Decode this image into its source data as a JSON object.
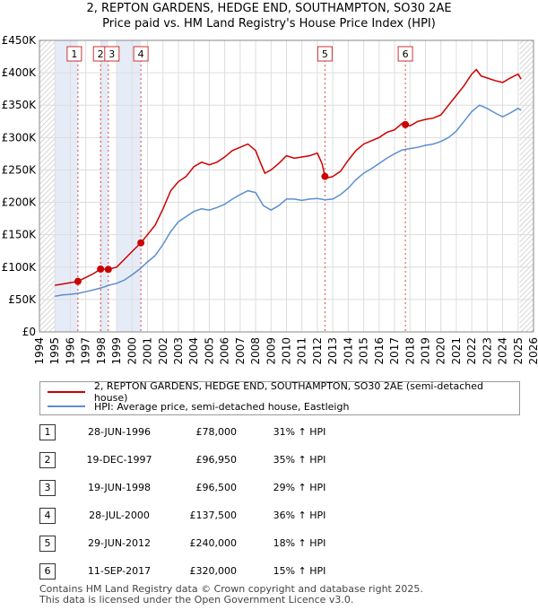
{
  "title_line1": "2, REPTON GARDENS, HEDGE END, SOUTHAMPTON, SO30 2AE",
  "title_line2": "Price paid vs. HM Land Registry's House Price Index (HPI)",
  "chart_data": {
    "type": "line",
    "ylim": [
      0,
      450000
    ],
    "xlim": [
      1994,
      2026
    ],
    "y_ticks": [
      {
        "value": 0,
        "label": "£0"
      },
      {
        "value": 50000,
        "label": "£50K"
      },
      {
        "value": 100000,
        "label": "£100K"
      },
      {
        "value": 150000,
        "label": "£150K"
      },
      {
        "value": 200000,
        "label": "£200K"
      },
      {
        "value": 250000,
        "label": "£250K"
      },
      {
        "value": 300000,
        "label": "£300K"
      },
      {
        "value": 350000,
        "label": "£350K"
      },
      {
        "value": 400000,
        "label": "£400K"
      },
      {
        "value": 450000,
        "label": "£450K"
      }
    ],
    "x_ticks": [
      "1994",
      "1995",
      "1996",
      "1997",
      "1998",
      "1999",
      "2000",
      "2001",
      "2002",
      "2003",
      "2004",
      "2005",
      "2006",
      "2007",
      "2008",
      "2009",
      "2010",
      "2011",
      "2012",
      "2013",
      "2014",
      "2015",
      "2016",
      "2017",
      "2018",
      "2019",
      "2020",
      "2021",
      "2022",
      "2023",
      "2024",
      "2025",
      "2026"
    ],
    "series": [
      {
        "name": "2, REPTON GARDENS, HEDGE END, SOUTHAMPTON, SO30 2AE (semi-detached house)",
        "color": "#cc0000",
        "x": [
          1995.0,
          1995.5,
          1996.0,
          1996.49,
          1997.0,
          1997.5,
          1997.96,
          1998.46,
          1999.0,
          1999.5,
          2000.0,
          2000.57,
          2001.0,
          2001.5,
          2002.0,
          2002.5,
          2003.0,
          2003.5,
          2004.0,
          2004.5,
          2005.0,
          2005.5,
          2006.0,
          2006.5,
          2007.0,
          2007.5,
          2008.0,
          2008.3,
          2008.6,
          2009.0,
          2009.5,
          2010.0,
          2010.5,
          2011.0,
          2011.5,
          2012.0,
          2012.3,
          2012.49,
          2012.7,
          2013.0,
          2013.5,
          2014.0,
          2014.5,
          2015.0,
          2015.5,
          2016.0,
          2016.5,
          2017.0,
          2017.5,
          2017.7,
          2018.0,
          2018.5,
          2019.0,
          2019.5,
          2020.0,
          2020.5,
          2021.0,
          2021.5,
          2022.0,
          2022.3,
          2022.6,
          2023.0,
          2023.5,
          2024.0,
          2024.5,
          2025.0,
          2025.2
        ],
        "values": [
          72000,
          74000,
          76000,
          78000,
          84000,
          90000,
          96950,
          96500,
          100000,
          112000,
          124000,
          137500,
          150000,
          165000,
          190000,
          218000,
          232000,
          240000,
          255000,
          262000,
          258000,
          262000,
          270000,
          280000,
          285000,
          290000,
          280000,
          262000,
          245000,
          250000,
          260000,
          272000,
          268000,
          270000,
          272000,
          276000,
          260000,
          240000,
          238000,
          240000,
          248000,
          265000,
          280000,
          290000,
          295000,
          300000,
          308000,
          312000,
          322000,
          320000,
          318000,
          325000,
          328000,
          330000,
          335000,
          350000,
          365000,
          380000,
          398000,
          405000,
          395000,
          392000,
          388000,
          385000,
          392000,
          398000,
          390000
        ]
      },
      {
        "name": "HPI: Average price, semi-detached house, Eastleigh",
        "color": "#5b8fd0",
        "x": [
          1995.0,
          1995.5,
          1996.0,
          1996.5,
          1997.0,
          1997.5,
          1998.0,
          1998.5,
          1999.0,
          1999.5,
          2000.0,
          2000.5,
          2001.0,
          2001.5,
          2002.0,
          2002.5,
          2003.0,
          2003.5,
          2004.0,
          2004.5,
          2005.0,
          2005.5,
          2006.0,
          2006.5,
          2007.0,
          2007.5,
          2008.0,
          2008.5,
          2009.0,
          2009.5,
          2010.0,
          2010.5,
          2011.0,
          2011.5,
          2012.0,
          2012.5,
          2013.0,
          2013.5,
          2014.0,
          2014.5,
          2015.0,
          2015.5,
          2016.0,
          2016.5,
          2017.0,
          2017.5,
          2018.0,
          2018.5,
          2019.0,
          2019.5,
          2020.0,
          2020.5,
          2021.0,
          2021.5,
          2022.0,
          2022.5,
          2023.0,
          2023.5,
          2024.0,
          2024.5,
          2025.0,
          2025.2
        ],
        "values": [
          55000,
          57000,
          58000,
          59500,
          62000,
          65000,
          68000,
          72000,
          75000,
          80000,
          88000,
          97000,
          108000,
          118000,
          135000,
          155000,
          170000,
          178000,
          186000,
          190000,
          188000,
          192000,
          197000,
          205000,
          212000,
          218000,
          215000,
          195000,
          188000,
          195000,
          205000,
          205000,
          203000,
          205000,
          206000,
          204000,
          205000,
          212000,
          222000,
          235000,
          245000,
          252000,
          260000,
          268000,
          275000,
          281000,
          283000,
          285000,
          288000,
          290000,
          294000,
          300000,
          310000,
          325000,
          340000,
          350000,
          345000,
          338000,
          332000,
          338000,
          345000,
          342000
        ]
      }
    ],
    "transactions": [
      {
        "label": "1",
        "date": "28-JUN-1996",
        "x": 1996.49,
        "price": "£78,000",
        "value": 78000,
        "hpi": "31% ↑ HPI"
      },
      {
        "label": "2",
        "date": "19-DEC-1997",
        "x": 1997.96,
        "price": "£96,950",
        "value": 96950,
        "hpi": "35% ↑ HPI"
      },
      {
        "label": "3",
        "date": "19-JUN-1998",
        "x": 1998.46,
        "price": "£96,500",
        "value": 96500,
        "hpi": "29% ↑ HPI"
      },
      {
        "label": "4",
        "date": "28-JUL-2000",
        "x": 2000.57,
        "price": "£137,500",
        "value": 137500,
        "hpi": "36% ↑ HPI"
      },
      {
        "label": "5",
        "date": "29-JUN-2012",
        "x": 2012.49,
        "price": "£240,000",
        "value": 240000,
        "hpi": "18% ↑ HPI"
      },
      {
        "label": "6",
        "date": "11-SEP-2017",
        "x": 2017.7,
        "price": "£320,000",
        "value": 320000,
        "hpi": "15% ↑ HPI"
      }
    ]
  },
  "legend": {
    "red_label": "2, REPTON GARDENS, HEDGE END, SOUTHAMPTON, SO30 2AE (semi-detached house)",
    "blue_label": "HPI: Average price, semi-detached house, Eastleigh"
  },
  "footer_line1": "Contains HM Land Registry data © Crown copyright and database right 2025.",
  "footer_line2": "This data is licensed under the Open Government Licence v3.0."
}
